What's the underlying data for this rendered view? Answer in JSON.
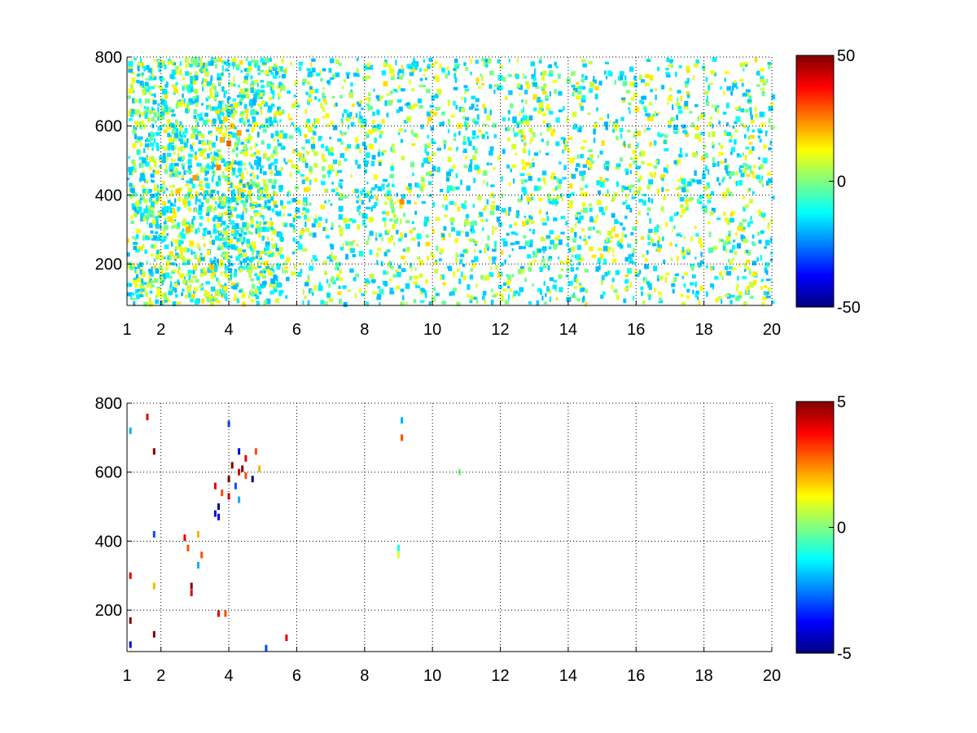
{
  "chart_data": [
    {
      "type": "heatmap",
      "title": "",
      "xlabel": "",
      "ylabel": "",
      "xlim": [
        1,
        20
      ],
      "ylim": [
        80,
        800
      ],
      "x_ticks": [
        1,
        2,
        4,
        6,
        8,
        10,
        12,
        14,
        16,
        18,
        20
      ],
      "x_tick_labels": [
        "1",
        "2",
        "4",
        "6",
        "8",
        "10",
        "12",
        "14",
        "16",
        "18",
        "20"
      ],
      "y_ticks": [
        200,
        400,
        600,
        800
      ],
      "y_tick_labels": [
        "200",
        "400",
        "600",
        "800"
      ],
      "grid": true,
      "colormap": "jet",
      "clim": [
        -50,
        50
      ],
      "colorbar_ticks": [
        -50,
        0,
        50
      ],
      "colorbar_tick_labels": [
        "-50",
        "0",
        "50"
      ],
      "colorbar": "right",
      "background_color": "#ffffff",
      "density_profile": [
        {
          "x_range": [
            1,
            5.5
          ],
          "density": 0.55
        },
        {
          "x_range": [
            5.5,
            20
          ],
          "density": 0.22
        }
      ],
      "cells": [
        [
          1.1,
          780,
          -12
        ],
        [
          1.3,
          640,
          5
        ],
        [
          1.5,
          500,
          -18
        ],
        [
          1.7,
          350,
          -4
        ],
        [
          1.9,
          220,
          8
        ],
        [
          2.1,
          700,
          -15
        ],
        [
          2.3,
          560,
          12
        ],
        [
          2.5,
          410,
          18
        ],
        [
          2.7,
          380,
          15
        ],
        [
          2.8,
          300,
          20
        ],
        [
          2.9,
          260,
          14
        ],
        [
          3.0,
          450,
          22
        ],
        [
          3.2,
          520,
          10
        ],
        [
          3.3,
          610,
          -8
        ],
        [
          3.5,
          190,
          18
        ],
        [
          3.7,
          480,
          25
        ],
        [
          3.8,
          560,
          20
        ],
        [
          3.9,
          620,
          16
        ],
        [
          4.0,
          550,
          28
        ],
        [
          4.1,
          600,
          18
        ],
        [
          4.2,
          660,
          14
        ],
        [
          4.3,
          580,
          22
        ],
        [
          4.4,
          700,
          8
        ],
        [
          4.5,
          520,
          12
        ],
        [
          4.7,
          640,
          -10
        ],
        [
          4.9,
          300,
          -5
        ],
        [
          5.1,
          420,
          6
        ],
        [
          5.3,
          150,
          -20
        ],
        [
          5.6,
          710,
          4
        ],
        [
          6.1,
          250,
          -12
        ],
        [
          6.4,
          590,
          9
        ],
        [
          6.7,
          130,
          -14
        ],
        [
          7.0,
          480,
          10
        ],
        [
          7.3,
          360,
          -16
        ],
        [
          7.6,
          690,
          6
        ],
        [
          7.9,
          230,
          -10
        ],
        [
          8.2,
          540,
          12
        ],
        [
          8.5,
          120,
          -8
        ],
        [
          8.8,
          760,
          10
        ],
        [
          9.1,
          380,
          24
        ],
        [
          9.3,
          620,
          8
        ],
        [
          9.6,
          280,
          -12
        ],
        [
          9.8,
          500,
          -15
        ],
        [
          10.2,
          700,
          9
        ],
        [
          10.5,
          420,
          -10
        ],
        [
          10.8,
          600,
          14
        ],
        [
          11.0,
          320,
          6
        ],
        [
          11.3,
          480,
          -14
        ],
        [
          11.6,
          160,
          10
        ],
        [
          12.0,
          740,
          -12
        ],
        [
          12.4,
          540,
          8
        ],
        [
          12.8,
          260,
          -6
        ],
        [
          13.2,
          660,
          10
        ],
        [
          13.6,
          380,
          -14
        ],
        [
          14.1,
          500,
          12
        ],
        [
          14.3,
          220,
          -10
        ],
        [
          14.7,
          720,
          7
        ],
        [
          15.0,
          430,
          -12
        ],
        [
          15.4,
          600,
          10
        ],
        [
          15.8,
          180,
          -8
        ],
        [
          16.2,
          520,
          9
        ],
        [
          16.6,
          300,
          -10
        ],
        [
          17.0,
          680,
          12
        ],
        [
          17.4,
          440,
          -12
        ],
        [
          17.8,
          570,
          8
        ],
        [
          18.2,
          240,
          -6
        ],
        [
          18.6,
          400,
          10
        ],
        [
          19.0,
          620,
          -10
        ],
        [
          19.4,
          140,
          7
        ],
        [
          19.8,
          500,
          -12
        ]
      ]
    },
    {
      "type": "heatmap",
      "title": "",
      "xlabel": "",
      "ylabel": "",
      "xlim": [
        1,
        20
      ],
      "ylim": [
        80,
        800
      ],
      "x_ticks": [
        1,
        2,
        4,
        6,
        8,
        10,
        12,
        14,
        16,
        18,
        20
      ],
      "x_tick_labels": [
        "1",
        "2",
        "4",
        "6",
        "8",
        "10",
        "12",
        "14",
        "16",
        "18",
        "20"
      ],
      "y_ticks": [
        200,
        400,
        600,
        800
      ],
      "y_tick_labels": [
        "200",
        "400",
        "600",
        "800"
      ],
      "grid": true,
      "colormap": "jet",
      "clim": [
        -5,
        5
      ],
      "colorbar_ticks": [
        -5,
        0,
        5
      ],
      "colorbar_tick_labels": [
        "-5",
        "0",
        "5"
      ],
      "colorbar": "right",
      "background_color": "#ffffff",
      "cells": [
        [
          1.1,
          720,
          -2
        ],
        [
          1.1,
          300,
          4
        ],
        [
          1.1,
          170,
          5
        ],
        [
          1.1,
          100,
          -4
        ],
        [
          1.6,
          760,
          4
        ],
        [
          1.8,
          660,
          5
        ],
        [
          1.8,
          420,
          -3
        ],
        [
          1.8,
          270,
          2
        ],
        [
          1.8,
          130,
          5
        ],
        [
          2.7,
          410,
          4
        ],
        [
          2.8,
          380,
          3
        ],
        [
          2.9,
          270,
          5
        ],
        [
          2.9,
          250,
          4
        ],
        [
          3.1,
          420,
          2
        ],
        [
          3.1,
          330,
          -2
        ],
        [
          3.2,
          360,
          3
        ],
        [
          3.6,
          560,
          4
        ],
        [
          3.6,
          480,
          -4
        ],
        [
          3.7,
          500,
          -5
        ],
        [
          3.7,
          470,
          -4
        ],
        [
          3.8,
          540,
          3
        ],
        [
          3.7,
          190,
          4
        ],
        [
          3.9,
          190,
          3
        ],
        [
          4.0,
          580,
          5
        ],
        [
          4.0,
          530,
          4
        ],
        [
          4.1,
          620,
          5
        ],
        [
          4.2,
          560,
          -3
        ],
        [
          4.3,
          600,
          4
        ],
        [
          4.3,
          520,
          -2
        ],
        [
          4.4,
          610,
          5
        ],
        [
          4.5,
          590,
          3
        ],
        [
          4.5,
          640,
          4
        ],
        [
          4.7,
          580,
          -5
        ],
        [
          4.8,
          660,
          3
        ],
        [
          4.0,
          740,
          -3
        ],
        [
          4.3,
          660,
          -4
        ],
        [
          4.9,
          610,
          2
        ],
        [
          5.7,
          120,
          4
        ],
        [
          5.1,
          90,
          -3
        ],
        [
          9.1,
          750,
          -2
        ],
        [
          9.1,
          700,
          3
        ],
        [
          9.0,
          380,
          -1
        ],
        [
          9.0,
          360,
          1
        ],
        [
          10.8,
          600,
          0
        ]
      ]
    }
  ]
}
